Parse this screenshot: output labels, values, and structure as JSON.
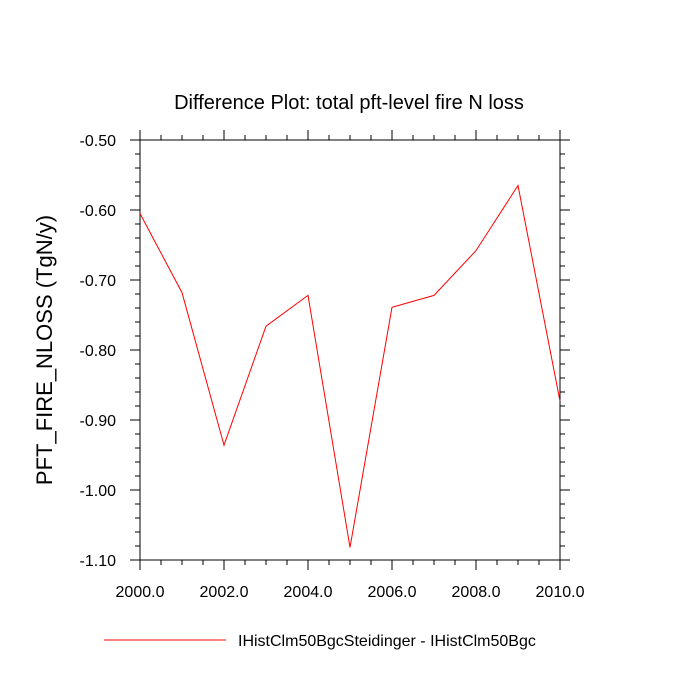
{
  "chart_data": {
    "type": "line",
    "title": "Difference Plot: total pft-level fire N loss",
    "xlabel": "",
    "ylabel": "PFT_FIRE_NLOSS  (TgN/y)",
    "xlim": [
      2000,
      2010
    ],
    "ylim": [
      -1.1,
      -0.5
    ],
    "x_ticks": [
      "2000.0",
      "2002.0",
      "2004.0",
      "2006.0",
      "2008.0",
      "2010.0"
    ],
    "y_ticks": [
      "-0.50",
      "-0.60",
      "-0.70",
      "-0.80",
      "-0.90",
      "-1.00",
      "-1.10"
    ],
    "grid": false,
    "legend_position": "bottom",
    "series": [
      {
        "name": "IHistClm50BgcSteidinger - IHistClm50Bgc",
        "color": "#ff0000",
        "x": [
          2000,
          2001,
          2002,
          2003,
          2004,
          2005,
          2006,
          2007,
          2008,
          2009,
          2010
        ],
        "y": [
          -0.605,
          -0.718,
          -0.936,
          -0.766,
          -0.722,
          -1.082,
          -0.739,
          -0.722,
          -0.658,
          -0.565,
          -0.873
        ]
      }
    ]
  }
}
